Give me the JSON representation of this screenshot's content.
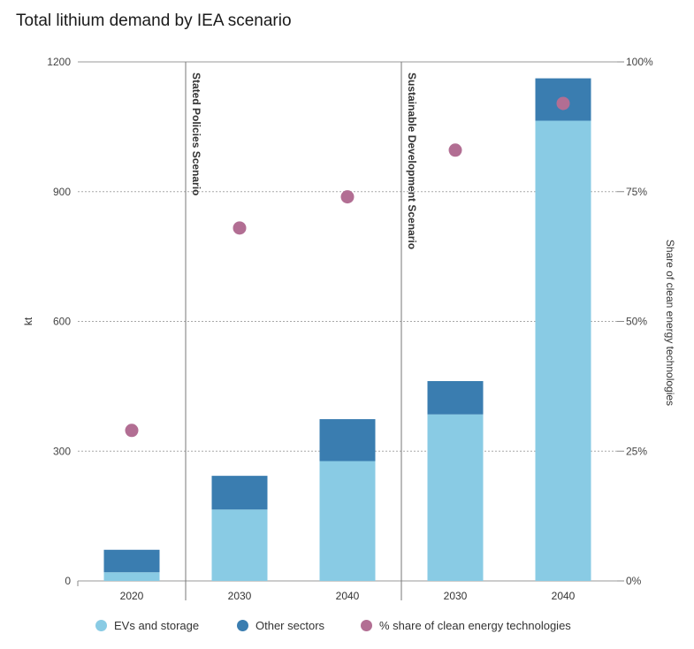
{
  "chart_data": {
    "type": "bar",
    "title": "Total lithium demand by IEA scenario",
    "categories": [
      "2020",
      "2030",
      "2040",
      "2030",
      "2040"
    ],
    "groups": [
      {
        "label": "",
        "categories": [
          0
        ]
      },
      {
        "label": "Stated Policies Scenario",
        "categories": [
          1,
          2
        ]
      },
      {
        "label": "Sustainable Development Scenario",
        "categories": [
          3,
          4
        ]
      }
    ],
    "series": [
      {
        "name": "EVs and storage",
        "kind": "stacked-bar",
        "axis": "left",
        "color": "#89cbe4",
        "values": [
          20,
          165,
          277,
          385,
          1064
        ]
      },
      {
        "name": "Other sectors",
        "kind": "stacked-bar",
        "axis": "left",
        "color": "#3a7db0",
        "values": [
          52,
          78,
          97,
          77,
          98
        ]
      },
      {
        "name": "% share of clean energy technologies",
        "kind": "dot",
        "axis": "right",
        "color": "#b26e93",
        "values": [
          29,
          68,
          74,
          83,
          92
        ]
      }
    ],
    "ylabel": "kt",
    "ylim": [
      0,
      1200
    ],
    "yticks": [
      0,
      300,
      600,
      900,
      1200
    ],
    "y2label": "Share of clean energy technologies",
    "y2lim": [
      0,
      100
    ],
    "y2ticks": [
      "0%",
      "25%",
      "50%",
      "75%",
      "100%"
    ],
    "grid": true,
    "legend_position": "bottom"
  }
}
